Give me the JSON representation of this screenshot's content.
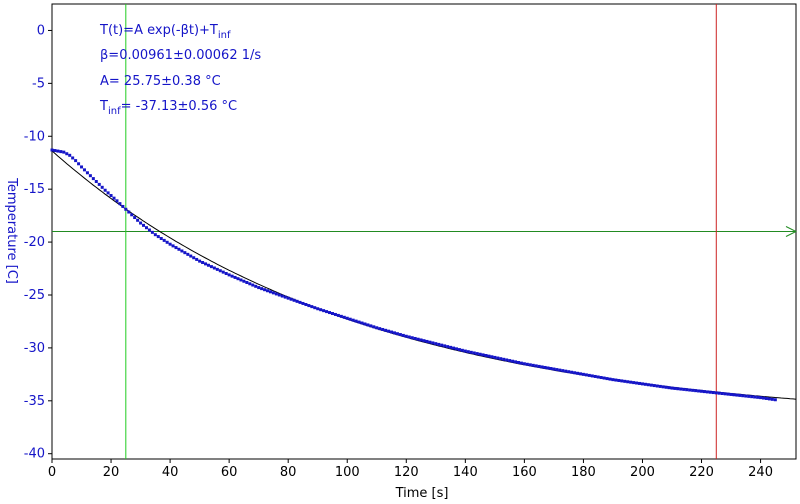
{
  "chart_data": {
    "type": "scatter",
    "title": "",
    "xlabel": "Time [s]",
    "ylabel": "Temperature [C]",
    "xlim": [
      0,
      252
    ],
    "ylim": [
      -40.5,
      2.5
    ],
    "xticks": [
      0,
      20,
      40,
      60,
      80,
      100,
      120,
      140,
      160,
      180,
      200,
      220,
      240
    ],
    "yticks": [
      0,
      -5,
      -10,
      -15,
      -20,
      -25,
      -30,
      -35,
      -40
    ],
    "grid": false,
    "legend": "none",
    "fit": {
      "formula_prefix": "T(t)=A exp(-βt)+T",
      "formula_sub": "inf",
      "beta_text": "β=0.00961±0.00062 1/s",
      "A_text": "A= 25.75±0.38 °C",
      "tinf_prefix": "T",
      "tinf_sub": "inf",
      "tinf_value": "= -37.13±0.56 °C",
      "A": 25.75,
      "beta": 0.00961,
      "T_inf": -37.13
    },
    "series": [
      {
        "x": [
          0,
          2,
          4,
          6,
          8,
          10,
          14,
          18,
          22,
          25,
          30,
          35,
          40,
          50,
          60,
          70,
          80,
          90,
          100,
          110,
          120,
          130,
          140,
          150,
          160,
          170,
          180,
          190,
          200,
          210,
          220,
          230,
          240,
          245
        ],
        "y": [
          -11.3,
          -11.4,
          -11.5,
          -11.8,
          -12.3,
          -12.9,
          -14.0,
          -15.1,
          -16.1,
          -16.9,
          -18.2,
          -19.3,
          -20.2,
          -21.8,
          -23.1,
          -24.3,
          -25.3,
          -26.3,
          -27.2,
          -28.1,
          -28.9,
          -29.6,
          -30.3,
          -30.9,
          -31.5,
          -32.0,
          -32.5,
          -33.0,
          -33.4,
          -33.8,
          -34.1,
          -34.4,
          -34.7,
          -34.9
        ],
        "color": "#1515c8"
      }
    ],
    "cursors": [
      {
        "x": 25,
        "color": "#22cc22"
      },
      {
        "x": 225,
        "color": "#cc2222"
      }
    ],
    "horizontal_line": {
      "y": -19.0,
      "color": "#228b22"
    },
    "fit_line_color": "#000000"
  }
}
